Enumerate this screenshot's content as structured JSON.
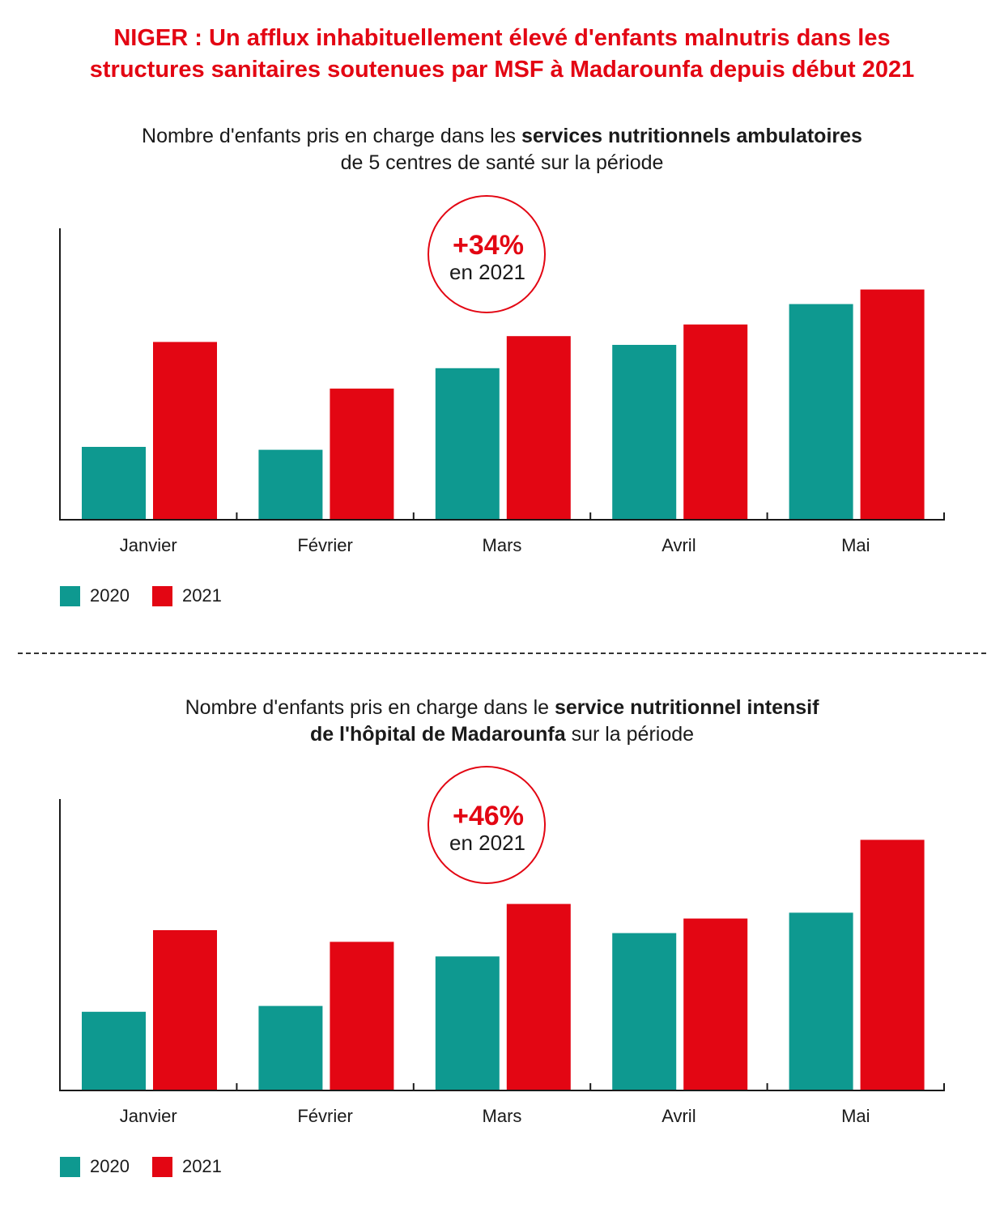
{
  "title": {
    "line1": "NIGER : Un afflux inhabituellement élevé d'enfants malnutris dans les",
    "line2": "structures sanitaires soutenues par MSF à Madarounfa depuis début 2021"
  },
  "colors": {
    "accent": "#e30613",
    "series_2020": "#0e9990",
    "series_2021": "#e30613"
  },
  "charts": [
    {
      "subtitle": {
        "l1_pre": "Nombre d'enfants pris en charge dans les ",
        "l1_bold": "services nutritionnels ambulatoires",
        "l2_pre": "",
        "l2_bold": "",
        "l2_post": "de 5 centres de santé sur la période"
      },
      "badge": {
        "percent": "+34%",
        "label": "en 2021"
      }
    },
    {
      "subtitle": {
        "l1_pre": "Nombre d'enfants pris en charge dans le ",
        "l1_bold": "service nutritionnel intensif",
        "l2_pre": "",
        "l2_bold": "de l'hôpital de Madarounfa",
        "l2_post": " sur la période"
      },
      "badge": {
        "percent": "+46%",
        "label": "en 2021"
      }
    }
  ],
  "legend": [
    "2020",
    "2021"
  ],
  "chart_data": [
    {
      "type": "bar",
      "categories": [
        "Janvier",
        "Février",
        "Mars",
        "Avril",
        "Mai"
      ],
      "series": [
        {
          "name": "2020",
          "values": [
            25,
            24,
            52,
            60,
            74
          ]
        },
        {
          "name": "2021",
          "values": [
            61,
            45,
            63,
            67,
            79
          ]
        }
      ],
      "ylim": [
        0,
        100
      ],
      "legend_position": "bottom-left",
      "grid": false
    },
    {
      "type": "bar",
      "categories": [
        "Janvier",
        "Février",
        "Mars",
        "Avril",
        "Mai"
      ],
      "series": [
        {
          "name": "2020",
          "values": [
            27,
            29,
            46,
            54,
            61
          ]
        },
        {
          "name": "2021",
          "values": [
            55,
            51,
            64,
            59,
            86
          ]
        }
      ],
      "ylim": [
        0,
        100
      ],
      "legend_position": "bottom-left",
      "grid": false
    }
  ]
}
